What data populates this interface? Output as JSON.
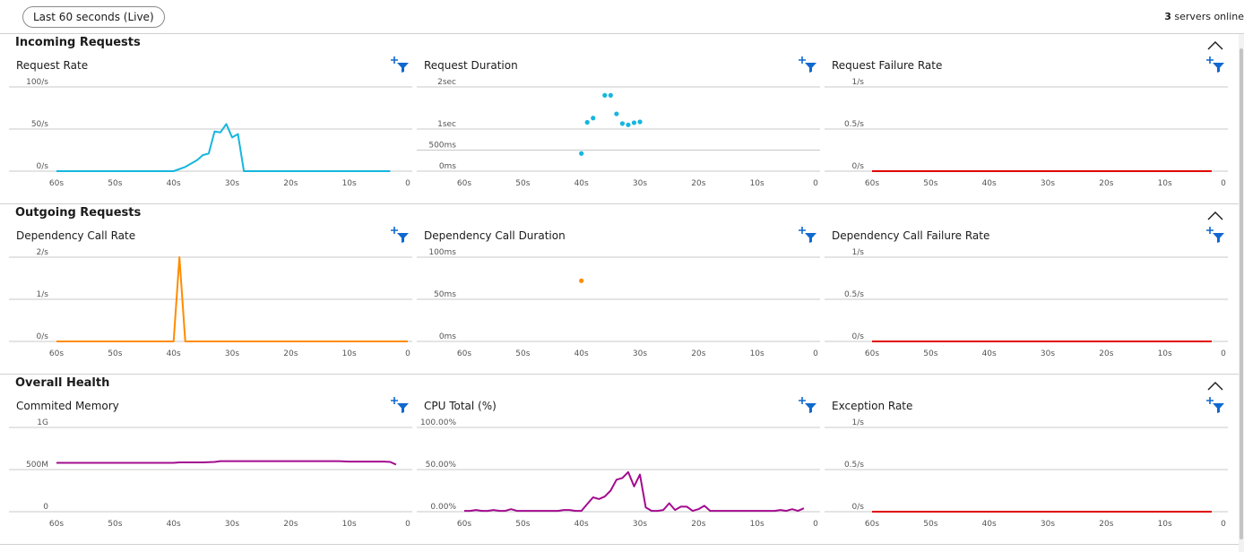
{
  "toolbar": {
    "time_range": "Last 60 seconds (Live)",
    "servers_count": "3",
    "servers_label": "servers online"
  },
  "icons": {
    "collapse": "chevron-up-icon",
    "filter": "add-filter-icon"
  },
  "colors": {
    "request": "#16b6df",
    "dependency": "#ff8c00",
    "failure": "#e00000",
    "health": "#a30b8f",
    "filter_icon": "#0f68cf"
  },
  "x_ticks": [
    "60s",
    "50s",
    "40s",
    "30s",
    "20s",
    "10s",
    "0"
  ],
  "sections": [
    {
      "title": "Incoming Requests",
      "charts": [
        {
          "id": "request-rate",
          "title": "Request Rate",
          "type": "line",
          "color": "request",
          "y_ticks": [
            "100/s",
            "50/s",
            "0/s"
          ],
          "ymax": 100,
          "x": [
            60,
            40,
            38,
            36,
            35,
            34,
            33,
            32,
            31,
            30,
            29,
            28,
            27,
            3
          ],
          "y": [
            0,
            0,
            5,
            13,
            19,
            21,
            47,
            46,
            56,
            40,
            44,
            0,
            0,
            0
          ]
        },
        {
          "id": "request-duration",
          "title": "Request Duration",
          "type": "scatter",
          "color": "request",
          "y_ticks": [
            "2sec",
            "1sec",
            "500ms",
            "0ms"
          ],
          "tick_vals": [
            2000,
            1000,
            500,
            0
          ],
          "ymax": 2000,
          "x": [
            36,
            35,
            38,
            39,
            40,
            34,
            33,
            32,
            31,
            30
          ],
          "y": [
            1800,
            1800,
            1260,
            1160,
            420,
            1360,
            1130,
            1100,
            1150,
            1170
          ]
        },
        {
          "id": "request-failure-rate",
          "title": "Request Failure Rate",
          "type": "line",
          "color": "failure",
          "y_ticks": [
            "1/s",
            "0.5/s",
            "0/s"
          ],
          "ymax": 1,
          "x": [
            60,
            2
          ],
          "y": [
            0,
            0
          ]
        }
      ]
    },
    {
      "title": "Outgoing Requests",
      "charts": [
        {
          "id": "dependency-call-rate",
          "title": "Dependency Call Rate",
          "type": "line",
          "color": "dependency",
          "y_ticks": [
            "2/s",
            "1/s",
            "0/s"
          ],
          "ymax": 2,
          "x": [
            60,
            40,
            39,
            38,
            0
          ],
          "y": [
            0,
            0,
            2,
            0,
            0
          ]
        },
        {
          "id": "dependency-call-duration",
          "title": "Dependency Call Duration",
          "type": "scatter",
          "color": "dependency",
          "y_ticks": [
            "100ms",
            "50ms",
            "0ms"
          ],
          "ymax": 100,
          "x": [
            40
          ],
          "y": [
            72
          ]
        },
        {
          "id": "dependency-call-failure-rate",
          "title": "Dependency Call Failure Rate",
          "type": "line",
          "color": "failure",
          "y_ticks": [
            "1/s",
            "0.5/s",
            "0/s"
          ],
          "ymax": 1,
          "x": [
            60,
            2
          ],
          "y": [
            0,
            0
          ]
        }
      ]
    },
    {
      "title": "Overall Health",
      "charts": [
        {
          "id": "committed-memory",
          "title": "Commited Memory",
          "type": "line",
          "color": "health",
          "y_ticks": [
            "1G",
            "500M",
            "0"
          ],
          "ymax": 1000,
          "x": [
            60,
            40,
            39,
            35,
            33,
            32,
            30,
            22,
            20,
            12,
            10,
            4,
            3,
            2
          ],
          "y": [
            580,
            580,
            585,
            585,
            590,
            600,
            600,
            600,
            600,
            600,
            595,
            595,
            590,
            560
          ]
        },
        {
          "id": "cpu-total",
          "title": "CPU Total (%)",
          "type": "line",
          "color": "health",
          "y_ticks": [
            "100.00%",
            "50.00%",
            "0.00%"
          ],
          "ymax": 100,
          "x": [
            60,
            59,
            58,
            57,
            56,
            55,
            54,
            53,
            52,
            51,
            50,
            49,
            48,
            47,
            46,
            45,
            44,
            43,
            42,
            41,
            40,
            39,
            38,
            37,
            36,
            35,
            34,
            33,
            32,
            31,
            30,
            29,
            28,
            27,
            26,
            25,
            24,
            23,
            22,
            21,
            20,
            19,
            18,
            17,
            16,
            15,
            14,
            13,
            12,
            11,
            10,
            9,
            8,
            7,
            6,
            5,
            4,
            3,
            2
          ],
          "y": [
            1,
            1,
            2,
            1,
            1,
            2,
            1,
            1,
            3,
            1,
            1,
            1,
            1,
            1,
            1,
            1,
            1,
            2,
            2,
            1,
            1,
            9,
            17,
            15,
            18,
            25,
            38,
            40,
            47,
            30,
            44,
            5,
            1,
            1,
            2,
            10,
            2,
            6,
            6,
            1,
            3,
            7,
            1,
            1,
            1,
            1,
            1,
            1,
            1,
            1,
            1,
            1,
            1,
            1,
            2,
            1,
            3,
            1,
            4
          ]
        },
        {
          "id": "exception-rate",
          "title": "Exception Rate",
          "type": "line",
          "color": "failure",
          "y_ticks": [
            "1/s",
            "0.5/s",
            "0/s"
          ],
          "ymax": 1,
          "x": [
            60,
            2
          ],
          "y": [
            0,
            0
          ]
        }
      ]
    }
  ]
}
